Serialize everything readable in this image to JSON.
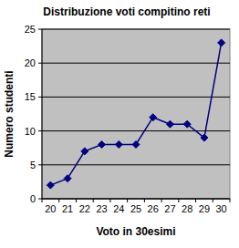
{
  "chart_data": {
    "type": "line",
    "title": "Distribuzione voti compitino reti",
    "x_label": "Voto in 30esimi",
    "y_label": "Numero studenti",
    "categories": [
      "20",
      "21",
      "22",
      "23",
      "24",
      "25",
      "26",
      "27",
      "28",
      "29",
      "30"
    ],
    "values": [
      2,
      3,
      7,
      8,
      8,
      8,
      12,
      11,
      11,
      9,
      23
    ],
    "color": "#000080",
    "marker": "diamond",
    "line_style": "solid",
    "ylim": [
      0,
      25
    ],
    "yticks": [
      0,
      5,
      10,
      15,
      20,
      25
    ],
    "grid": true
  }
}
